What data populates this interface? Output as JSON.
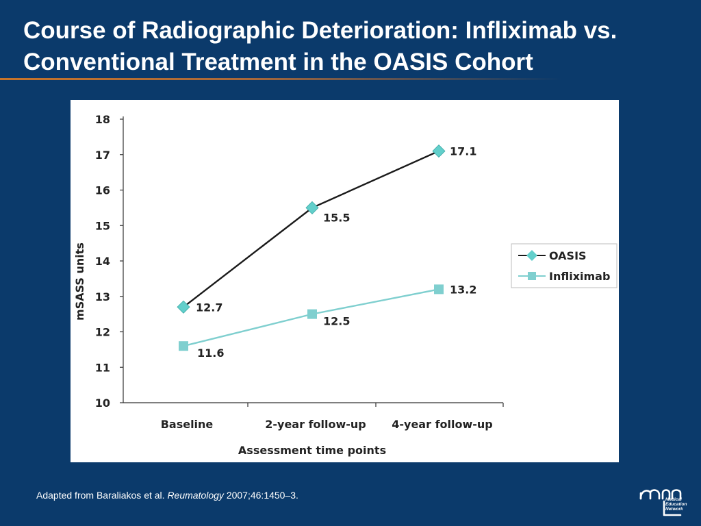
{
  "slide": {
    "title": "Course of Radiographic Deterioration: Infliximab vs. Conventional Treatment in the OASIS Cohort"
  },
  "footnote": {
    "prefix": "Adapted from Baraliakos et al. ",
    "journal": "Reumatology",
    "suffix": " 2007;46:1450–3."
  },
  "logo": {
    "lines": [
      "Medical",
      "Education",
      "Network"
    ]
  },
  "colors": {
    "background": "#0b3a6b",
    "oasis_line": "#1a1a1a",
    "oasis_marker": "#62cfcb",
    "infliximab": "#7fcfcf"
  },
  "chart_data": {
    "type": "line",
    "xlabel": "Assessment time points",
    "ylabel": "mSASS units",
    "categories": [
      "Baseline",
      "2-year follow-up",
      "4-year follow-up"
    ],
    "ylim": [
      10,
      18
    ],
    "yticks": [
      10,
      11,
      12,
      13,
      14,
      15,
      16,
      17,
      18
    ],
    "grid": false,
    "legend_position": "right",
    "series": [
      {
        "name": "OASIS",
        "values": [
          12.7,
          15.5,
          17.1
        ],
        "labels": [
          "12.7",
          "15.5",
          "17.1"
        ],
        "marker": "diamond"
      },
      {
        "name": "Infliximab",
        "values": [
          11.6,
          12.5,
          13.2
        ],
        "labels": [
          "11.6",
          "12.5",
          "13.2"
        ],
        "marker": "square"
      }
    ]
  }
}
